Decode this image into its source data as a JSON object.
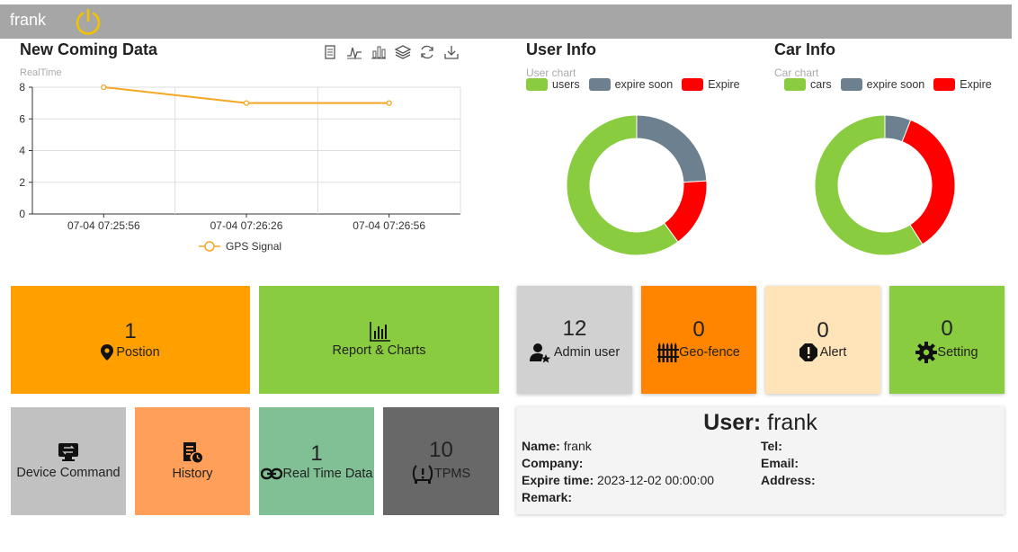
{
  "header": {
    "username": "frank",
    "power_icon": "power-icon"
  },
  "realtime": {
    "title": "New Coming Data",
    "subtitle": "RealTime",
    "toolbox_icons": [
      "data-view-icon",
      "line-chart-icon",
      "bar-chart-icon",
      "stack-icon",
      "refresh-icon",
      "download-icon"
    ]
  },
  "user_info": {
    "title": "User Info",
    "subtitle": "User chart",
    "legend": [
      {
        "label": "users",
        "color": "#8acc3f"
      },
      {
        "label": "expire soon",
        "color": "#6c8090"
      },
      {
        "label": "Expire",
        "color": "#ff0000"
      }
    ]
  },
  "car_info": {
    "title": "Car Info",
    "subtitle": "Car chart",
    "legend": [
      {
        "label": "cars",
        "color": "#8acc3f"
      },
      {
        "label": "expire soon",
        "color": "#6c8090"
      },
      {
        "label": "Expire",
        "color": "#ff0000"
      }
    ]
  },
  "chart_data": [
    {
      "type": "line",
      "title": "RealTime",
      "x": [
        "07-04 07:25:56",
        "07-04 07:26:26",
        "07-04 07:26:56"
      ],
      "series": [
        {
          "name": "GPS Signal",
          "values": [
            8,
            7,
            7
          ],
          "color": "#f5a623"
        }
      ],
      "yticks": [
        0,
        2,
        4,
        6,
        8
      ],
      "ylim": [
        0,
        8
      ],
      "grid": true,
      "legend": "bottom"
    },
    {
      "type": "pie",
      "title": "User chart",
      "labels": [
        "users",
        "expire soon",
        "Expire"
      ],
      "values": [
        60,
        24,
        16
      ],
      "colors": [
        "#8acc3f",
        "#6c8090",
        "#ff0000"
      ],
      "legend": "top"
    },
    {
      "type": "pie",
      "title": "Car chart",
      "labels": [
        "cars",
        "expire soon",
        "Expire"
      ],
      "values": [
        59,
        6,
        35
      ],
      "colors": [
        "#8acc3f",
        "#6c8090",
        "#ff0000"
      ],
      "legend": "top"
    }
  ],
  "tiles": {
    "position": {
      "count": "1",
      "label": "Postion",
      "color": "#ff9f00"
    },
    "report": {
      "label": "Report & Charts",
      "color": "#8acc3f"
    },
    "admin": {
      "count": "12",
      "label": "Admin user",
      "color": "#d1d1d1"
    },
    "geofence": {
      "count": "0",
      "label": "Geo-fence",
      "color": "#ff8400"
    },
    "alert": {
      "count": "0",
      "label": "Alert",
      "color": "#ffe4b9"
    },
    "setting": {
      "count": "0",
      "label": "Setting",
      "color": "#8acc3f"
    },
    "device": {
      "label": "Device Command",
      "color": "#c1c1c1"
    },
    "history": {
      "label": "History",
      "color": "#ff9f5a"
    },
    "realtime": {
      "count": "1",
      "label": "Real Time Data",
      "color": "#80c094"
    },
    "tpms": {
      "count": "10",
      "label": "TPMS",
      "color": "#686868"
    }
  },
  "user_panel": {
    "head_label": "User:",
    "head_value": "frank",
    "name_label": "Name:",
    "name_value": "frank",
    "company_label": "Company:",
    "company_value": "",
    "expire_label": "Expire time:",
    "expire_value": "2023-12-02 00:00:00",
    "remark_label": "Remark:",
    "remark_value": "",
    "tel_label": "Tel:",
    "tel_value": "",
    "email_label": "Email:",
    "email_value": "",
    "address_label": "Address:",
    "address_value": ""
  }
}
